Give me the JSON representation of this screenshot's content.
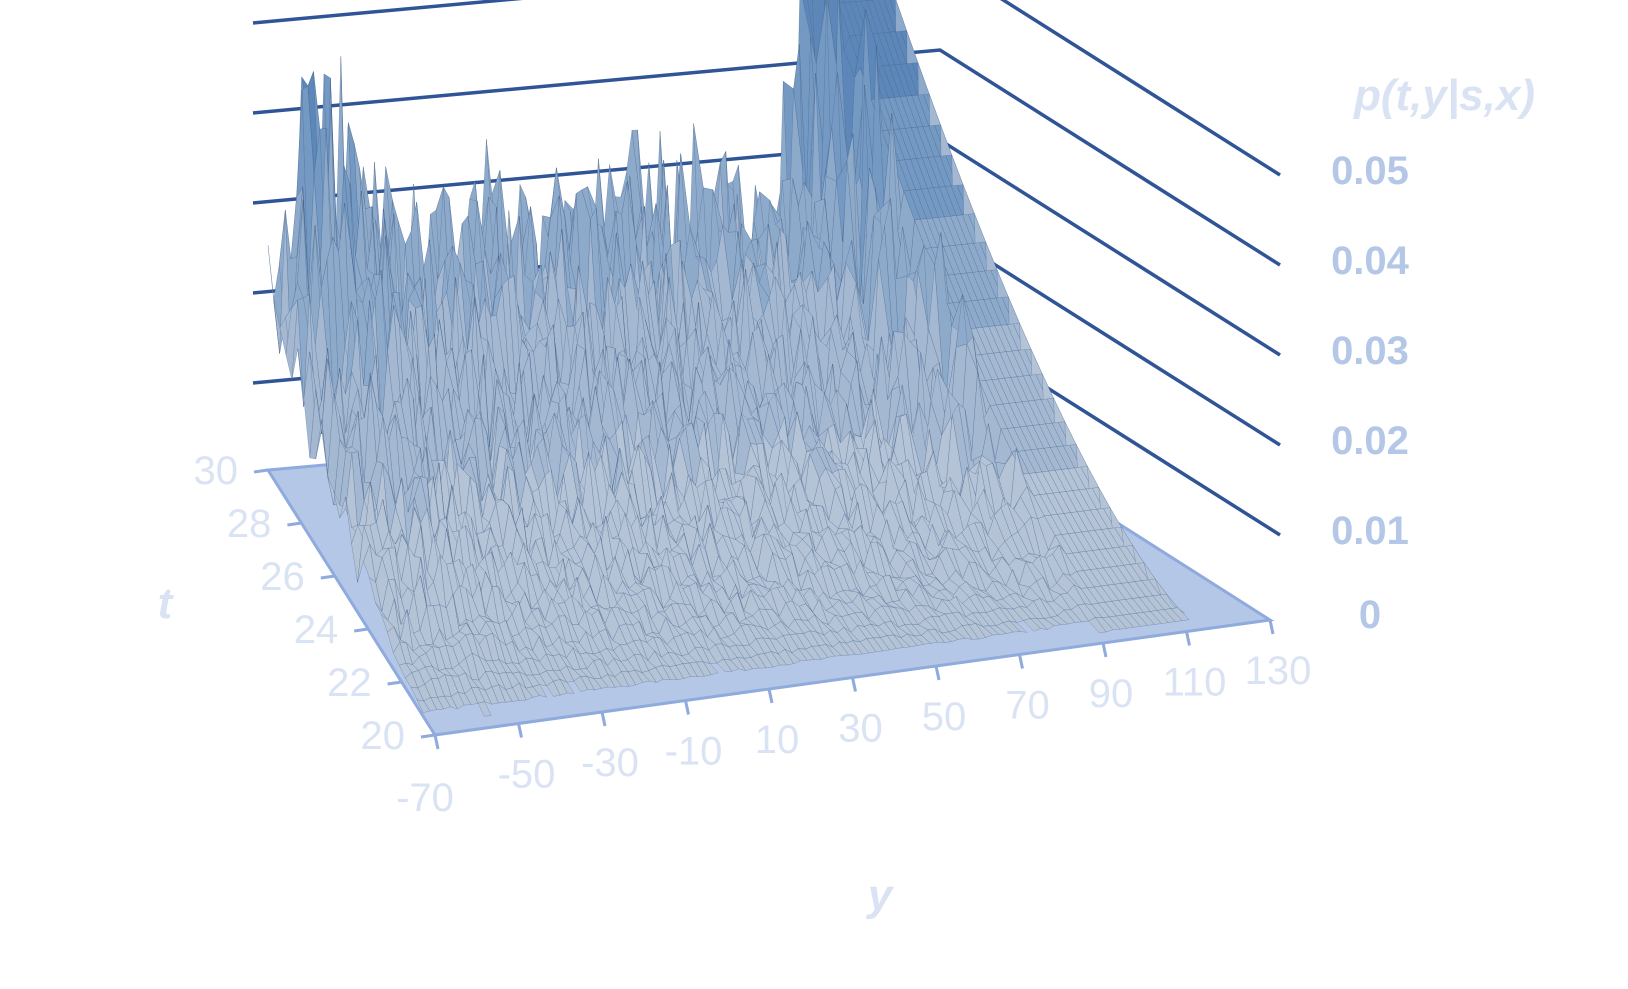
{
  "chart_data": {
    "type": "surface",
    "title": "",
    "xlabel": "y",
    "ylabel": "t",
    "zlabel": "p(t,y|s,x)",
    "y_axis": {
      "ticks": [
        "-70",
        "-50",
        "-30",
        "-10",
        "10",
        "30",
        "50",
        "70",
        "90",
        "110",
        "130"
      ],
      "range": [
        -70,
        130
      ]
    },
    "t_axis": {
      "ticks": [
        "20",
        "22",
        "24",
        "26",
        "28",
        "30"
      ],
      "range": [
        20,
        30
      ]
    },
    "z_axis": {
      "ticks": [
        "0",
        "0.01",
        "0.02",
        "0.03",
        "0.04",
        "0.05"
      ],
      "range": [
        0,
        0.05
      ]
    },
    "colors": {
      "gridline": "#2f5597",
      "floor": "#b4c7e7",
      "floor_edge": "#8faadc",
      "band_colors": [
        "#b4c3d6",
        "#a4b8d1",
        "#8eaacb",
        "#7499c2",
        "#5c87b8",
        "#4b78aa"
      ],
      "tick_z": "#b4c7e7",
      "tick_axis": "#dae3f3"
    },
    "shape": {
      "description_values": {
        "noise_level_0_1": 0.0,
        "peak_y_value": 110,
        "peak_height": 0.05,
        "left_ridge_y": -55,
        "left_ridge_height": 0.035,
        "trough_y": 20,
        "trough_height": 0.023
      }
    }
  }
}
